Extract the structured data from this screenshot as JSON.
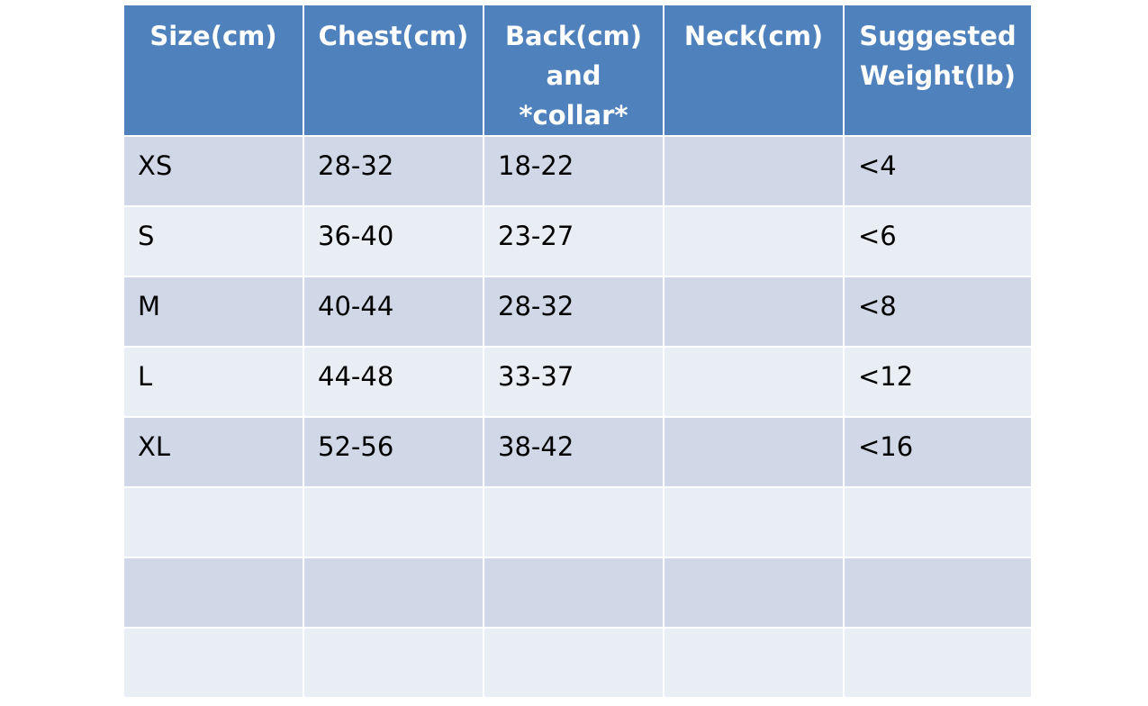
{
  "table": {
    "headers": [
      "Size(cm)",
      "Chest(cm)",
      "Back(cm)\nand\n*collar*",
      "Neck(cm)",
      "Suggested\nWeight(lb)"
    ],
    "rows": [
      [
        "XS",
        "28-32",
        "18-22",
        "",
        "<4"
      ],
      [
        "S",
        "36-40",
        "23-27",
        "",
        "<6"
      ],
      [
        "M",
        "40-44",
        "28-32",
        "",
        "<8"
      ],
      [
        "L",
        "44-48",
        "33-37",
        "",
        "<12"
      ],
      [
        "XL",
        "52-56",
        "38-42",
        "",
        "<16"
      ],
      [
        "",
        "",
        "",
        "",
        ""
      ],
      [
        "",
        "",
        "",
        "",
        ""
      ],
      [
        "",
        "",
        "",
        "",
        ""
      ]
    ]
  },
  "colors": {
    "header_bg": "#4f81bd",
    "row_odd_bg": "#d0d8e8",
    "row_even_bg": "#e9edf4"
  }
}
